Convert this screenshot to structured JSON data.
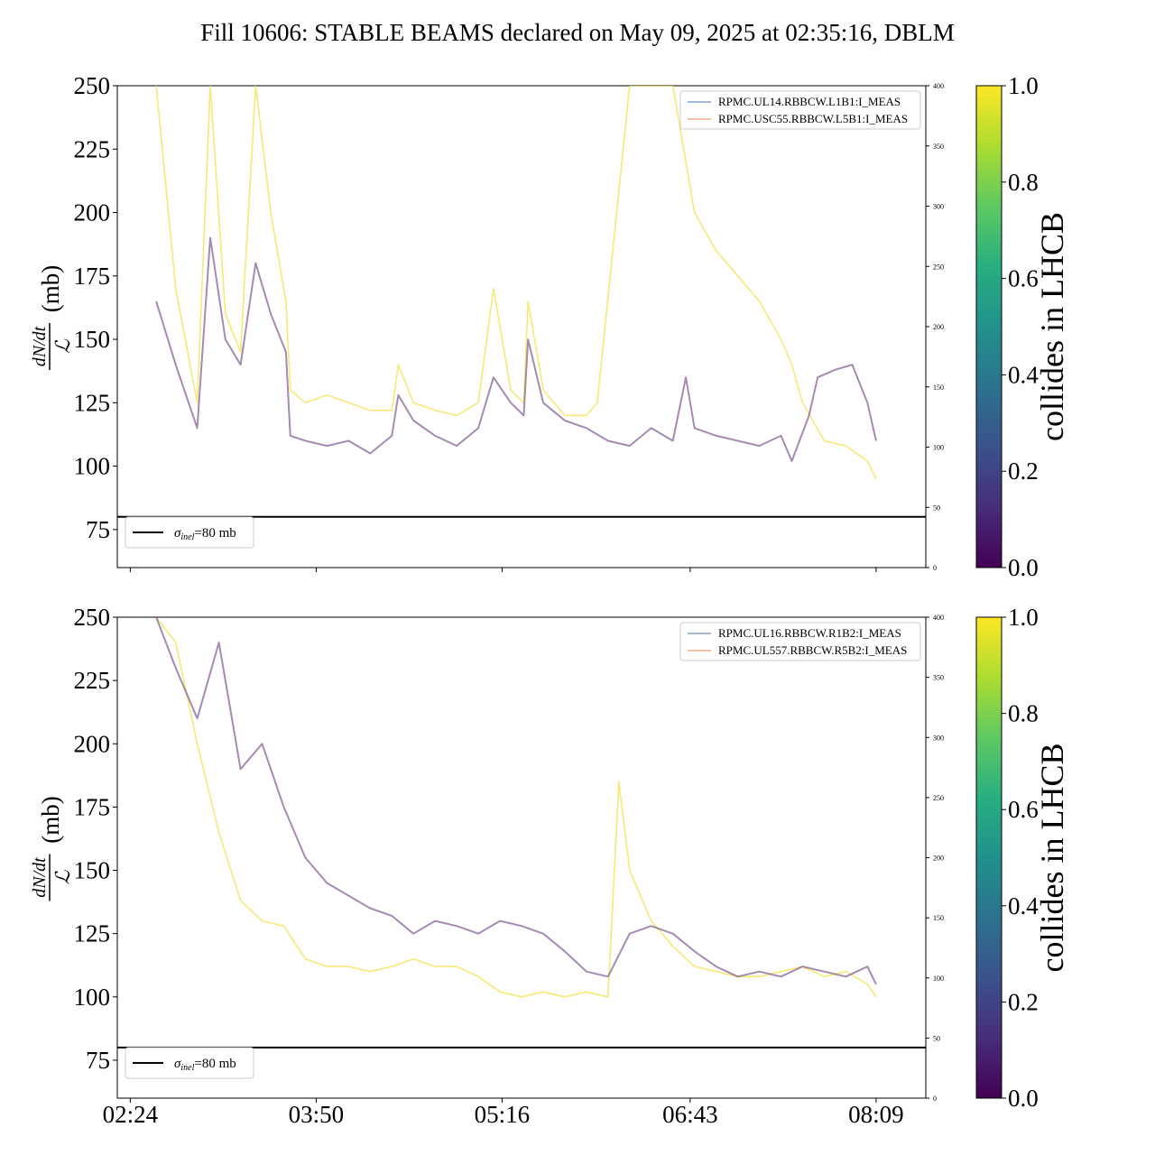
{
  "title": "Fill 10606: STABLE BEAMS declared on May 09, 2025 at 02:35:16, DBLM",
  "colors": {
    "purple": "#7e5a8e",
    "yellow": "#f3e24a",
    "blue_legend": "#4c72b0",
    "orange_legend": "#dd8452",
    "sigma_line": "#000000"
  },
  "chart_data": [
    {
      "type": "line",
      "panel": "top",
      "ylabel": "dN/dt / ℒ (mb)",
      "ylabel_num": "dN/dt",
      "ylabel_den": "ℒ",
      "ylabel_unit": "(mb)",
      "ylim": [
        60,
        250
      ],
      "yticks": [
        75,
        100,
        125,
        150,
        175,
        200,
        225,
        250
      ],
      "xlim": [
        "02:18",
        "08:32"
      ],
      "xticks": [
        "02:24",
        "03:50",
        "05:16",
        "06:43",
        "08:09"
      ],
      "right_ylim": [
        0,
        400
      ],
      "right_yticks": [
        0,
        50,
        100,
        150,
        200,
        250,
        300,
        350,
        400
      ],
      "legend_series": [
        "RPMC.UL14.RBBCW.L1B1:I_MEAS",
        "RPMC.USC55.RBBCW.L5B1:I_MEAS"
      ],
      "sigma_label": "σinel=80 mb",
      "sigma_value": 80,
      "colorbar": {
        "label": "collides in LHCB",
        "ticks": [
          "0.0",
          "0.2",
          "0.4",
          "0.6",
          "0.8",
          "1.0"
        ],
        "range": [
          0,
          1
        ]
      },
      "series": [
        {
          "name": "collides 0.2 (purple)",
          "x": [
            "02:36",
            "02:45",
            "02:55",
            "03:01",
            "03:08",
            "03:15",
            "03:22",
            "03:29",
            "03:36",
            "03:38",
            "03:45",
            "03:55",
            "04:05",
            "04:15",
            "04:25",
            "04:28",
            "04:35",
            "04:45",
            "04:55",
            "05:05",
            "05:12",
            "05:20",
            "05:26",
            "05:28",
            "05:35",
            "05:45",
            "05:55",
            "06:05",
            "06:15",
            "06:25",
            "06:35",
            "06:41",
            "06:45",
            "06:55",
            "07:05",
            "07:15",
            "07:25",
            "07:30",
            "07:38",
            "07:42",
            "07:50",
            "07:58",
            "08:05",
            "08:09"
          ],
          "y": [
            165,
            140,
            115,
            190,
            150,
            140,
            180,
            160,
            145,
            112,
            110,
            108,
            110,
            105,
            112,
            128,
            118,
            112,
            108,
            115,
            135,
            125,
            120,
            150,
            125,
            118,
            115,
            110,
            108,
            115,
            110,
            135,
            115,
            112,
            110,
            108,
            112,
            102,
            120,
            135,
            138,
            140,
            125,
            110
          ]
        },
        {
          "name": "collides 1.0 (yellow)",
          "x": [
            "02:36",
            "02:45",
            "02:55",
            "03:01",
            "03:08",
            "03:15",
            "03:22",
            "03:29",
            "03:36",
            "03:38",
            "03:45",
            "03:55",
            "04:05",
            "04:15",
            "04:25",
            "04:28",
            "04:35",
            "04:45",
            "04:55",
            "05:05",
            "05:12",
            "05:20",
            "05:26",
            "05:28",
            "05:35",
            "05:45",
            "05:55",
            "06:00",
            "06:15",
            "06:25",
            "06:35",
            "06:45",
            "06:55",
            "07:05",
            "07:15",
            "07:25",
            "07:30",
            "07:35",
            "07:45",
            "07:55",
            "08:05",
            "08:09"
          ],
          "y": [
            250,
            170,
            125,
            250,
            160,
            145,
            250,
            200,
            165,
            130,
            125,
            128,
            125,
            122,
            122,
            140,
            125,
            122,
            120,
            125,
            170,
            130,
            125,
            165,
            130,
            120,
            120,
            125,
            250,
            250,
            250,
            200,
            185,
            175,
            165,
            150,
            140,
            125,
            110,
            108,
            102,
            95
          ]
        }
      ]
    },
    {
      "type": "line",
      "panel": "bottom",
      "ylabel": "dN/dt / ℒ (mb)",
      "ylabel_num": "dN/dt",
      "ylabel_den": "ℒ",
      "ylabel_unit": "(mb)",
      "ylim": [
        60,
        250
      ],
      "yticks": [
        75,
        100,
        125,
        150,
        175,
        200,
        225,
        250
      ],
      "xlim": [
        "02:18",
        "08:32"
      ],
      "xticks": [
        "02:24",
        "03:50",
        "05:16",
        "06:43",
        "08:09"
      ],
      "right_ylim": [
        0,
        400
      ],
      "right_yticks": [
        0,
        50,
        100,
        150,
        200,
        250,
        300,
        350,
        400
      ],
      "legend_series": [
        "RPMC.UL16.RBBCW.R1B2:I_MEAS",
        "RPMC.UL557.RBBCW.R5B2:I_MEAS"
      ],
      "sigma_label": "σinel=80 mb",
      "sigma_value": 80,
      "colorbar": {
        "label": "collides in LHCB",
        "ticks": [
          "0.0",
          "0.2",
          "0.4",
          "0.6",
          "0.8",
          "1.0"
        ],
        "range": [
          0,
          1
        ]
      },
      "series": [
        {
          "name": "collides 0.2 (purple)",
          "x": [
            "02:36",
            "02:45",
            "02:55",
            "03:05",
            "03:15",
            "03:25",
            "03:35",
            "03:45",
            "03:55",
            "04:05",
            "04:15",
            "04:25",
            "04:35",
            "04:45",
            "04:55",
            "05:05",
            "05:15",
            "05:25",
            "05:35",
            "05:45",
            "05:55",
            "06:05",
            "06:15",
            "06:25",
            "06:35",
            "06:45",
            "06:55",
            "07:05",
            "07:15",
            "07:25",
            "07:35",
            "07:45",
            "07:55",
            "08:05",
            "08:09"
          ],
          "y": [
            250,
            230,
            210,
            240,
            190,
            200,
            175,
            155,
            145,
            140,
            135,
            132,
            125,
            130,
            128,
            125,
            130,
            128,
            125,
            118,
            110,
            108,
            125,
            128,
            125,
            118,
            112,
            108,
            110,
            108,
            112,
            110,
            108,
            112,
            105
          ]
        },
        {
          "name": "collides 1.0 (yellow)",
          "x": [
            "02:36",
            "02:45",
            "02:55",
            "03:05",
            "03:15",
            "03:25",
            "03:35",
            "03:45",
            "03:55",
            "04:05",
            "04:15",
            "04:25",
            "04:35",
            "04:45",
            "04:55",
            "05:05",
            "05:15",
            "05:25",
            "05:35",
            "05:45",
            "05:55",
            "06:05",
            "06:10",
            "06:15",
            "06:25",
            "06:35",
            "06:45",
            "06:55",
            "07:05",
            "07:15",
            "07:25",
            "07:35",
            "07:45",
            "07:55",
            "08:05",
            "08:09"
          ],
          "y": [
            250,
            240,
            200,
            165,
            138,
            130,
            128,
            115,
            112,
            112,
            110,
            112,
            115,
            112,
            112,
            108,
            102,
            100,
            102,
            100,
            102,
            100,
            185,
            150,
            130,
            120,
            112,
            110,
            108,
            108,
            110,
            112,
            108,
            110,
            105,
            100
          ]
        }
      ]
    }
  ]
}
